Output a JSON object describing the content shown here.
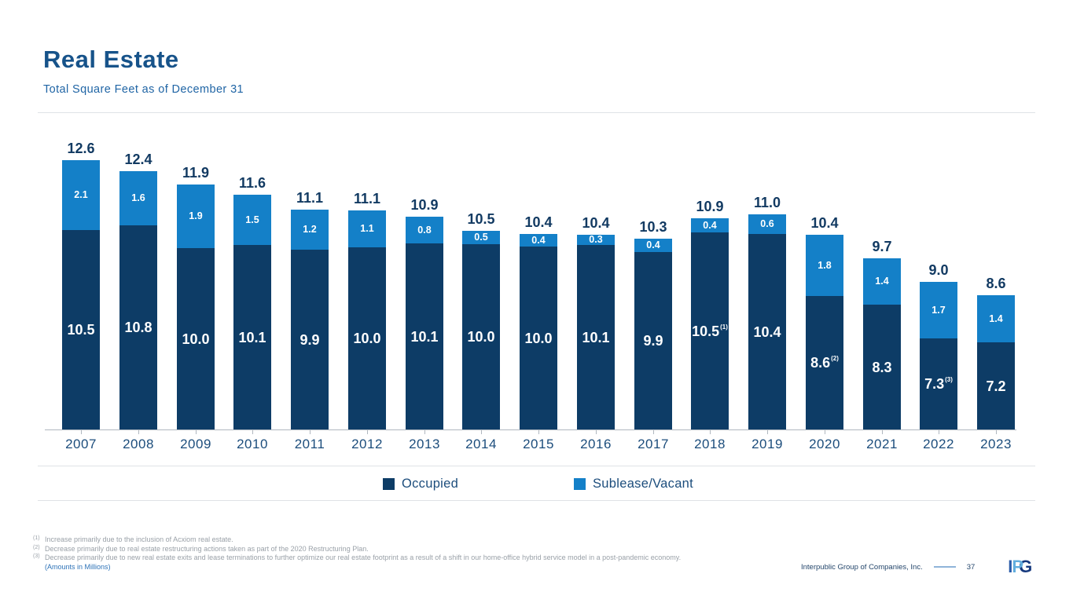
{
  "header": {
    "title": "Real Estate",
    "subtitle": "Total Square Feet as of December 31"
  },
  "chart_data": {
    "type": "bar",
    "stacked": true,
    "title": "Total Square Feet as of December 31",
    "xlabel": "",
    "ylabel": "",
    "grid": false,
    "y_axis_visible": false,
    "legend_position": "bottom",
    "categories": [
      "2007",
      "2008",
      "2009",
      "2010",
      "2011",
      "2012",
      "2013",
      "2014",
      "2015",
      "2016",
      "2017",
      "2018",
      "2019",
      "2020",
      "2021",
      "2022",
      "2023"
    ],
    "series": [
      {
        "name": "Occupied",
        "color": "#0d3c66",
        "values": [
          10.5,
          10.8,
          10.0,
          10.1,
          9.9,
          10.0,
          10.1,
          10.0,
          10.0,
          10.1,
          9.9,
          10.5,
          10.4,
          8.6,
          8.3,
          7.3,
          7.2
        ]
      },
      {
        "name": "Sublease/Vacant",
        "color": "#1480c8",
        "values": [
          2.1,
          1.6,
          1.9,
          1.5,
          1.2,
          1.1,
          0.8,
          0.5,
          0.4,
          0.3,
          0.4,
          0.4,
          0.6,
          1.8,
          1.4,
          1.7,
          1.4
        ]
      }
    ],
    "totals": [
      12.6,
      12.4,
      11.9,
      11.6,
      11.1,
      11.1,
      10.9,
      10.5,
      10.4,
      10.4,
      10.3,
      10.9,
      11.0,
      10.4,
      9.7,
      9.0,
      8.6
    ],
    "footnote_refs": {
      "2018": "(1)",
      "2020": "(2)",
      "2022": "(3)"
    }
  },
  "legend": {
    "items": [
      {
        "label": "Occupied",
        "color": "#0d3c66"
      },
      {
        "label": "Sublease/Vacant",
        "color": "#1480c8"
      }
    ]
  },
  "footnotes": [
    {
      "marker": "(1)",
      "text": "Increase primarily due to the inclusion of Acxiom real estate."
    },
    {
      "marker": "(2)",
      "text": "Decrease primarily due to real estate restructuring actions taken as part of the 2020 Restructuring Plan."
    },
    {
      "marker": "(3)",
      "text": "Decrease primarily due to new real estate exits and lease terminations to further optimize our real estate footprint as a result of a shift in our home-office hybrid service model in a post-pandemic economy."
    }
  ],
  "amounts_note": "(Amounts in Millions)",
  "footer": {
    "company": "Interpublic Group of Companies, Inc.",
    "page_number": "37",
    "logo_text": "IPG"
  }
}
